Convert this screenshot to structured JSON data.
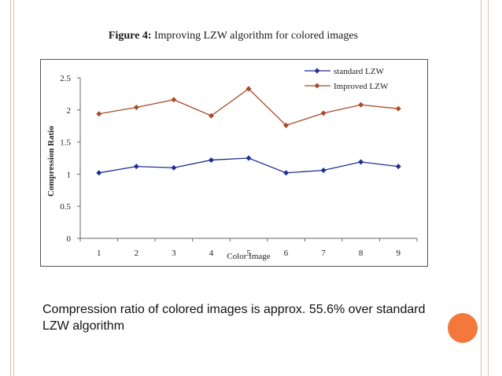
{
  "figure": {
    "title_bold": "Figure 4:",
    "title_rest": " Improving LZW algorithm for colored images"
  },
  "chart_data": {
    "type": "line",
    "title": "Figure 4: Improving LZW algorithm for colored images",
    "xlabel": "Color Image",
    "ylabel": "Compression Ratio",
    "x": [
      1,
      2,
      3,
      4,
      5,
      6,
      7,
      8,
      9
    ],
    "xticks": [
      "1",
      "2",
      "3",
      "4",
      "5",
      "6",
      "7",
      "8",
      "9"
    ],
    "yticks": [
      "0",
      "0.5",
      "1",
      "1.5",
      "2",
      "2.5"
    ],
    "ylim": [
      0,
      2.5
    ],
    "grid": false,
    "legend_position": "top-right",
    "series": [
      {
        "name": "standard LZW",
        "color": "#1f2f8f",
        "marker": "diamond",
        "values": [
          1.02,
          1.12,
          1.1,
          1.22,
          1.25,
          1.02,
          1.06,
          1.19,
          1.12
        ]
      },
      {
        "name": "Improved LZW",
        "color": "#a84a2a",
        "marker": "diamond",
        "values": [
          1.94,
          2.04,
          2.16,
          1.91,
          2.33,
          1.76,
          1.95,
          2.08,
          2.02
        ]
      }
    ]
  },
  "caption": "Compression  ratio of  colored images is approx. 55.6% over standard  LZW  algorithm",
  "colors": {
    "accent": "#f3783c",
    "rule": "#e8b8a8"
  }
}
